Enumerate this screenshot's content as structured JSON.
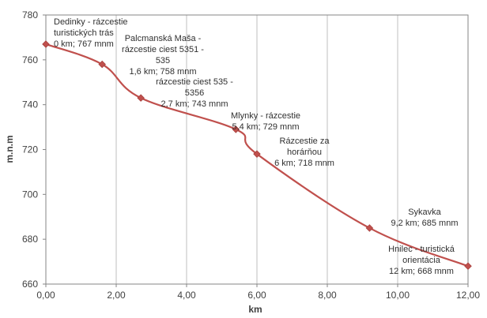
{
  "chart_data": {
    "type": "line",
    "xlabel": "km",
    "ylabel": "m.n.m",
    "xlim": [
      0,
      12
    ],
    "ylim": [
      660,
      780
    ],
    "x_tick_labels": [
      "0,00",
      "2,00",
      "4,00",
      "6,00",
      "8,00",
      "10,00",
      "12,00"
    ],
    "y_tick_labels": [
      "660",
      "680",
      "700",
      "720",
      "740",
      "760",
      "780"
    ],
    "grid": "vertical",
    "legend": "none",
    "series": [
      {
        "color": "#c0504d",
        "x": [
          0,
          1.6,
          2.7,
          5.4,
          6.0,
          9.2,
          12.0
        ],
        "y": [
          767,
          758,
          743,
          729,
          718,
          685,
          668
        ]
      }
    ],
    "point_labels": [
      {
        "lines": [
          "Dedinky - rázcestie",
          "turistických trás",
          "0 km; 767 mnm"
        ]
      },
      {
        "lines": [
          "Palcmanská Maša -",
          "rázcestie ciest 5351 -",
          "535",
          "1,6 km; 758 mnm"
        ]
      },
      {
        "lines": [
          "rázcestie ciest 535 -",
          "5356",
          "2,7 km; 743 mnm"
        ]
      },
      {
        "lines": [
          "Mlynky - rázcestie",
          "5,4 km; 729 mnm"
        ]
      },
      {
        "lines": [
          "Rázcestie za",
          "horárňou",
          "6 km; 718 mnm"
        ]
      },
      {
        "lines": [
          "Sykavka",
          "9,2 km; 685 mnm"
        ]
      },
      {
        "lines": [
          "Hnilec - turistická",
          "orientácia",
          "12 km; 668 mnm"
        ]
      }
    ]
  }
}
